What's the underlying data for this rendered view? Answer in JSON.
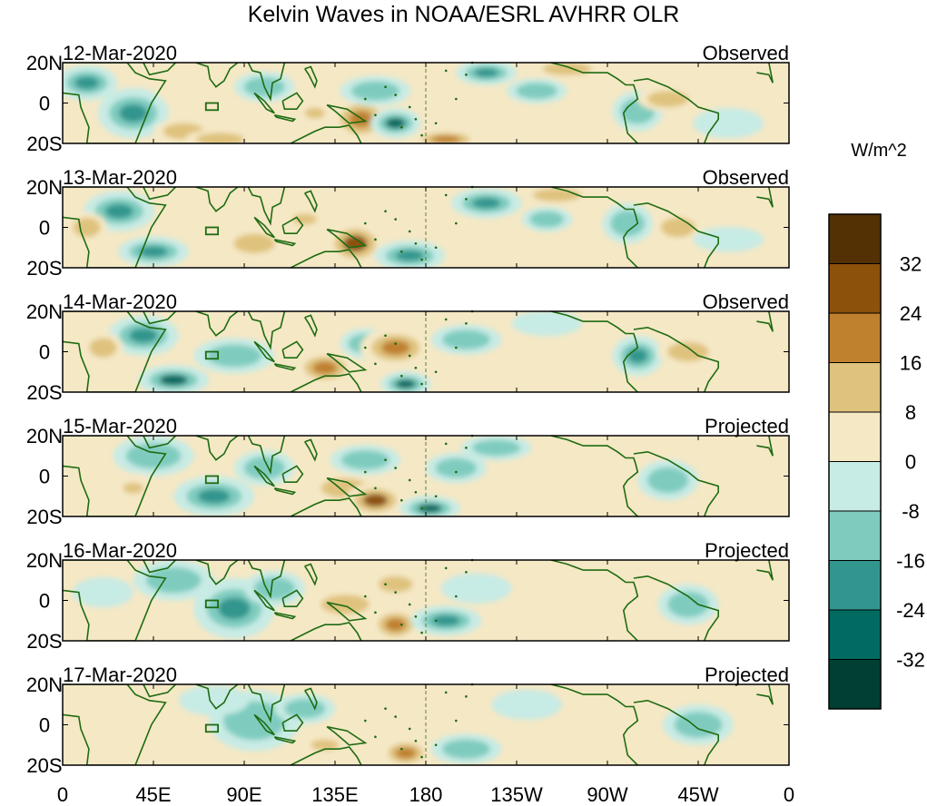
{
  "chart_data": {
    "type": "heatmap",
    "title": "Kelvin Waves in NOAA/ESRL AVHRR OLR",
    "xlabel": "",
    "ylabel": "",
    "x_ticks": [
      "0",
      "45E",
      "90E",
      "135E",
      "180",
      "135W",
      "90W",
      "45W",
      "0"
    ],
    "x_tick_values": [
      0,
      45,
      90,
      135,
      180,
      225,
      270,
      315,
      360
    ],
    "xlim": [
      0,
      360
    ],
    "y_ticks": [
      "20N",
      "0",
      "20S"
    ],
    "y_tick_values": [
      20,
      0,
      -20
    ],
    "ylim": [
      -20,
      20
    ],
    "dateline_lon": 180,
    "colorbar": {
      "label": "W/m^2",
      "levels": [
        -40,
        -32,
        -24,
        -16,
        -8,
        0,
        8,
        16,
        24,
        32,
        40
      ],
      "tick_labels": [
        "-32",
        "-24",
        "-16",
        "-8",
        "0",
        "8",
        "16",
        "24",
        "32"
      ],
      "tick_values": [
        -32,
        -24,
        -16,
        -8,
        0,
        8,
        16,
        24,
        32
      ],
      "colors": [
        "#013f33",
        "#016b62",
        "#33968e",
        "#7fccbf",
        "#c7ebe5",
        "#f5e8c5",
        "#dfc27d",
        "#bf812d",
        "#8c510a",
        "#543005"
      ]
    },
    "panels": [
      {
        "date": "12-Mar-2020",
        "status": "Observed",
        "anomalies": [
          {
            "lon": 12,
            "lat": 10,
            "value": -20,
            "rlon": 12,
            "rlat": 7
          },
          {
            "lon": 35,
            "lat": -5,
            "value": -18,
            "rlon": 14,
            "rlat": 10
          },
          {
            "lon": 60,
            "lat": -14,
            "value": 12,
            "rlon": 12,
            "rlat": 5
          },
          {
            "lon": 78,
            "lat": -18,
            "value": 10,
            "rlon": 14,
            "rlat": 4
          },
          {
            "lon": 60,
            "lat": 8,
            "value": 6,
            "rlon": 12,
            "rlat": 6
          },
          {
            "lon": 100,
            "lat": 8,
            "value": -10,
            "rlon": 12,
            "rlat": 6
          },
          {
            "lon": 125,
            "lat": -5,
            "value": 8,
            "rlon": 10,
            "rlat": 6
          },
          {
            "lon": 148,
            "lat": -8,
            "value": 22,
            "rlon": 12,
            "rlat": 9
          },
          {
            "lon": 165,
            "lat": -10,
            "value": -25,
            "rlon": 10,
            "rlat": 6
          },
          {
            "lon": 155,
            "lat": 6,
            "value": -12,
            "rlon": 14,
            "rlat": 6
          },
          {
            "lon": 190,
            "lat": -18,
            "value": 16,
            "rlon": 14,
            "rlat": 4
          },
          {
            "lon": 210,
            "lat": 15,
            "value": -22,
            "rlon": 12,
            "rlat": 5
          },
          {
            "lon": 250,
            "lat": 17,
            "value": 14,
            "rlon": 14,
            "rlat": 4
          },
          {
            "lon": 235,
            "lat": 6,
            "value": -10,
            "rlon": 12,
            "rlat": 5
          },
          {
            "lon": 285,
            "lat": -4,
            "value": -14,
            "rlon": 10,
            "rlat": 8
          },
          {
            "lon": 300,
            "lat": 2,
            "value": 10,
            "rlon": 12,
            "rlat": 5
          },
          {
            "lon": 330,
            "lat": -10,
            "value": -6,
            "rlon": 14,
            "rlat": 6
          }
        ]
      },
      {
        "date": "13-Mar-2020",
        "status": "Observed",
        "anomalies": [
          {
            "lon": 28,
            "lat": 8,
            "value": -22,
            "rlon": 14,
            "rlat": 8
          },
          {
            "lon": 12,
            "lat": 0,
            "value": 10,
            "rlon": 8,
            "rlat": 6
          },
          {
            "lon": 45,
            "lat": -12,
            "value": -20,
            "rlon": 14,
            "rlat": 6
          },
          {
            "lon": 95,
            "lat": -8,
            "value": 14,
            "rlon": 12,
            "rlat": 6
          },
          {
            "lon": 120,
            "lat": 4,
            "value": 8,
            "rlon": 12,
            "rlat": 6
          },
          {
            "lon": 145,
            "lat": -8,
            "value": 24,
            "rlon": 12,
            "rlat": 9
          },
          {
            "lon": 172,
            "lat": -14,
            "value": -22,
            "rlon": 14,
            "rlat": 6
          },
          {
            "lon": 210,
            "lat": 12,
            "value": -24,
            "rlon": 14,
            "rlat": 6
          },
          {
            "lon": 245,
            "lat": 16,
            "value": 14,
            "rlon": 14,
            "rlat": 4
          },
          {
            "lon": 240,
            "lat": 4,
            "value": -10,
            "rlon": 10,
            "rlat": 5
          },
          {
            "lon": 280,
            "lat": 2,
            "value": -16,
            "rlon": 10,
            "rlat": 8
          },
          {
            "lon": 305,
            "lat": 0,
            "value": 14,
            "rlon": 10,
            "rlat": 6
          },
          {
            "lon": 330,
            "lat": -6,
            "value": -8,
            "rlon": 14,
            "rlat": 5
          }
        ]
      },
      {
        "date": "14-Mar-2020",
        "status": "Observed",
        "anomalies": [
          {
            "lon": 40,
            "lat": 8,
            "value": -18,
            "rlon": 14,
            "rlat": 8
          },
          {
            "lon": 20,
            "lat": 2,
            "value": 10,
            "rlon": 8,
            "rlat": 6
          },
          {
            "lon": 55,
            "lat": -14,
            "value": -26,
            "rlon": 14,
            "rlat": 6
          },
          {
            "lon": 85,
            "lat": -2,
            "value": -14,
            "rlon": 16,
            "rlat": 7
          },
          {
            "lon": 130,
            "lat": -8,
            "value": 20,
            "rlon": 12,
            "rlat": 7
          },
          {
            "lon": 150,
            "lat": 4,
            "value": -10,
            "rlon": 10,
            "rlat": 6
          },
          {
            "lon": 165,
            "lat": 2,
            "value": 22,
            "rlon": 14,
            "rlat": 8
          },
          {
            "lon": 170,
            "lat": -16,
            "value": -26,
            "rlon": 10,
            "rlat": 5
          },
          {
            "lon": 200,
            "lat": 6,
            "value": -14,
            "rlon": 14,
            "rlat": 6
          },
          {
            "lon": 240,
            "lat": 14,
            "value": -8,
            "rlon": 14,
            "rlat": 5
          },
          {
            "lon": 285,
            "lat": -2,
            "value": -18,
            "rlon": 10,
            "rlat": 8
          },
          {
            "lon": 310,
            "lat": 0,
            "value": 10,
            "rlon": 12,
            "rlat": 6
          },
          {
            "lon": 340,
            "lat": 8,
            "value": 6,
            "rlon": 12,
            "rlat": 6
          }
        ]
      },
      {
        "date": "15-Mar-2020",
        "status": "Projected",
        "anomalies": [
          {
            "lon": 45,
            "lat": 10,
            "value": -14,
            "rlon": 16,
            "rlat": 8
          },
          {
            "lon": 75,
            "lat": -10,
            "value": -24,
            "rlon": 16,
            "rlat": 8
          },
          {
            "lon": 35,
            "lat": -6,
            "value": 8,
            "rlon": 10,
            "rlat": 6
          },
          {
            "lon": 100,
            "lat": 4,
            "value": -12,
            "rlon": 12,
            "rlat": 7
          },
          {
            "lon": 140,
            "lat": -6,
            "value": 10,
            "rlon": 14,
            "rlat": 6
          },
          {
            "lon": 150,
            "lat": 8,
            "value": -10,
            "rlon": 14,
            "rlat": 6
          },
          {
            "lon": 155,
            "lat": -12,
            "value": 24,
            "rlon": 12,
            "rlat": 7
          },
          {
            "lon": 182,
            "lat": -16,
            "value": -28,
            "rlon": 12,
            "rlat": 5
          },
          {
            "lon": 195,
            "lat": 4,
            "value": -10,
            "rlon": 12,
            "rlat": 6
          },
          {
            "lon": 215,
            "lat": 14,
            "value": -12,
            "rlon": 14,
            "rlat": 5
          },
          {
            "lon": 300,
            "lat": -2,
            "value": -16,
            "rlon": 12,
            "rlat": 8
          },
          {
            "lon": 260,
            "lat": 8,
            "value": 6,
            "rlon": 12,
            "rlat": 6
          }
        ]
      },
      {
        "date": "16-Mar-2020",
        "status": "Projected",
        "anomalies": [
          {
            "lon": 55,
            "lat": 10,
            "value": -12,
            "rlon": 16,
            "rlat": 8
          },
          {
            "lon": 85,
            "lat": -4,
            "value": -20,
            "rlon": 16,
            "rlat": 12
          },
          {
            "lon": 105,
            "lat": 6,
            "value": -14,
            "rlon": 12,
            "rlat": 7
          },
          {
            "lon": 140,
            "lat": -2,
            "value": 12,
            "rlon": 14,
            "rlat": 6
          },
          {
            "lon": 165,
            "lat": -12,
            "value": 22,
            "rlon": 10,
            "rlat": 7
          },
          {
            "lon": 165,
            "lat": 8,
            "value": 14,
            "rlon": 10,
            "rlat": 5
          },
          {
            "lon": 190,
            "lat": -10,
            "value": -22,
            "rlon": 14,
            "rlat": 6
          },
          {
            "lon": 205,
            "lat": 6,
            "value": -8,
            "rlon": 14,
            "rlat": 6
          },
          {
            "lon": 310,
            "lat": -2,
            "value": -16,
            "rlon": 12,
            "rlat": 8
          },
          {
            "lon": 20,
            "lat": 4,
            "value": -6,
            "rlon": 12,
            "rlat": 6
          }
        ]
      },
      {
        "date": "17-Mar-2020",
        "status": "Projected",
        "anomalies": [
          {
            "lon": 95,
            "lat": 2,
            "value": -14,
            "rlon": 18,
            "rlat": 12
          },
          {
            "lon": 75,
            "lat": 12,
            "value": -8,
            "rlon": 14,
            "rlat": 6
          },
          {
            "lon": 120,
            "lat": 8,
            "value": -12,
            "rlon": 12,
            "rlat": 6
          },
          {
            "lon": 130,
            "lat": -10,
            "value": 8,
            "rlon": 14,
            "rlat": 6
          },
          {
            "lon": 170,
            "lat": -14,
            "value": 18,
            "rlon": 10,
            "rlat": 6
          },
          {
            "lon": 200,
            "lat": -12,
            "value": -14,
            "rlon": 14,
            "rlat": 6
          },
          {
            "lon": 230,
            "lat": 10,
            "value": -8,
            "rlon": 14,
            "rlat": 6
          },
          {
            "lon": 315,
            "lat": 0,
            "value": -10,
            "rlon": 14,
            "rlat": 8
          },
          {
            "lon": 30,
            "lat": -4,
            "value": 6,
            "rlon": 14,
            "rlat": 6
          }
        ]
      }
    ]
  }
}
